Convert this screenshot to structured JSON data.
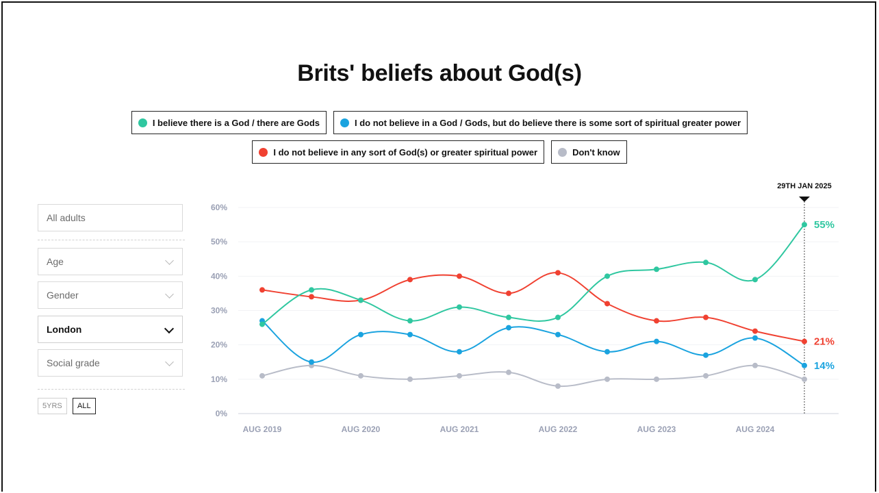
{
  "colors": {
    "god": "#2fc7a0",
    "spiritual": "#1aa3df",
    "none": "#f04131",
    "dont_know": "#b8bcc8"
  },
  "filters": {
    "all_adults": "All adults",
    "age": "Age",
    "gender": "Gender",
    "region": "London",
    "social_grade": "Social grade"
  },
  "range": {
    "five_years": "5YRS",
    "all": "ALL"
  },
  "chart_data": {
    "type": "line",
    "title": "Brits' beliefs about God(s)",
    "x": [
      "Aug 2019",
      "Feb 2020",
      "Aug 2020",
      "Feb 2021",
      "Aug 2021",
      "Feb 2022",
      "Aug 2022",
      "Feb 2023",
      "Aug 2023",
      "Feb 2024",
      "Aug 2024",
      "Jan 2025"
    ],
    "x_tick_labels": [
      "AUG 2019",
      "AUG 2020",
      "AUG 2021",
      "AUG 2022",
      "AUG 2023",
      "AUG 2024"
    ],
    "y_tick_labels": [
      "0%",
      "10%",
      "20%",
      "30%",
      "40%",
      "50%",
      "60%"
    ],
    "ylim": [
      0,
      60
    ],
    "grid": true,
    "legend_position": "top",
    "series": [
      {
        "key": "god",
        "name": "I believe there is a God / there are Gods",
        "values": [
          26,
          36,
          33,
          27,
          31,
          28,
          28,
          40,
          42,
          44,
          39,
          55
        ]
      },
      {
        "key": "spiritual",
        "name": "I do not believe in a God / Gods, but do believe there is some sort of spiritual greater power",
        "values": [
          27,
          15,
          23,
          23,
          18,
          25,
          23,
          18,
          21,
          17,
          22,
          14
        ]
      },
      {
        "key": "none",
        "name": "I do not believe in any sort of God(s) or greater spiritual power",
        "values": [
          36,
          34,
          33,
          39,
          40,
          35,
          41,
          32,
          27,
          28,
          24,
          21
        ]
      },
      {
        "key": "dont_know",
        "name": "Don't know",
        "values": [
          11,
          14,
          11,
          10,
          11,
          12,
          8,
          10,
          10,
          11,
          14,
          10
        ]
      }
    ],
    "end_labels": [
      {
        "key": "god",
        "text": "55%"
      },
      {
        "key": "none",
        "text": "21%"
      },
      {
        "key": "spiritual",
        "text": "14%"
      }
    ],
    "marker_label": "29TH JAN 2025"
  }
}
